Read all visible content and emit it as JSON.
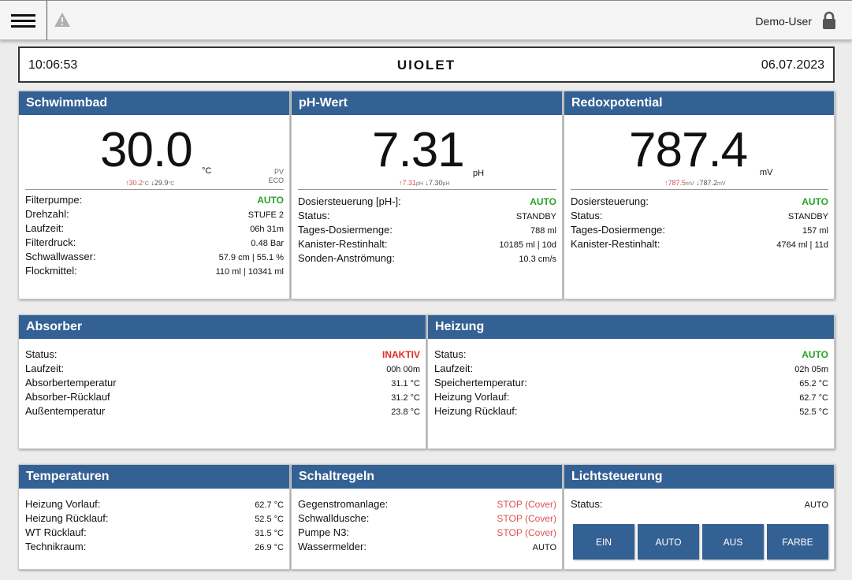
{
  "topbar": {
    "menu_icon": "hamburger-icon",
    "warning_icon": "warning-icon",
    "user": "Demo-User",
    "lock_icon": "lock-icon"
  },
  "header": {
    "time": "10:06:53",
    "logo": "UIOLET",
    "date": "06.07.2023"
  },
  "colors": {
    "accent": "#346194",
    "auto": "#29a329",
    "inactive": "#e22a2a",
    "stop": "#e05252"
  },
  "schwimmbad": {
    "title": "Schwimmbad",
    "value": "30.0",
    "unit": "°C",
    "max": "↑30.2",
    "max_unit": "°C",
    "min": "↓29.9",
    "min_unit": "°C",
    "pv": "PV",
    "eco": "ECO",
    "rows": [
      {
        "label": "Filterpumpe:",
        "value": "AUTO"
      },
      {
        "label": "Drehzahl:",
        "value": "STUFE 2"
      },
      {
        "label": "Laufzeit:",
        "value": "06h 31m"
      },
      {
        "label": "Filterdruck:",
        "value": "0.48 Bar"
      },
      {
        "label": "Schwallwasser:",
        "value": "57.9 cm | 55.1 %"
      },
      {
        "label": "Flockmittel:",
        "value": "110 ml | 10341 ml"
      }
    ]
  },
  "ph": {
    "title": "pH-Wert",
    "value": "7.31",
    "unit": "pH",
    "max": "↑7.31",
    "max_unit": "pH",
    "min": "↓7.30",
    "min_unit": "pH",
    "rows": [
      {
        "label": "Dosiersteuerung [pH-]:",
        "value": "AUTO"
      },
      {
        "label": "Status:",
        "value": "STANDBY"
      },
      {
        "label": "Tages-Dosiermenge:",
        "value": "788 ml"
      },
      {
        "label": "Kanister-Restinhalt:",
        "value": "10185 ml | 10d"
      },
      {
        "label": "Sonden-Anströmung:",
        "value": "10.3 cm/s"
      }
    ]
  },
  "redox": {
    "title": "Redoxpotential",
    "value": "787.4",
    "unit": "mV",
    "max": "↑787.5",
    "max_unit": "mV",
    "min": "↓787.2",
    "min_unit": "mV",
    "rows": [
      {
        "label": "Dosiersteuerung:",
        "value": "AUTO"
      },
      {
        "label": "Status:",
        "value": "STANDBY"
      },
      {
        "label": "Tages-Dosiermenge:",
        "value": "157 ml"
      },
      {
        "label": "Kanister-Restinhalt:",
        "value": "4764 ml | 11d"
      }
    ]
  },
  "absorber": {
    "title": "Absorber",
    "rows": [
      {
        "label": "Status:",
        "value": "INAKTIV"
      },
      {
        "label": "Laufzeit:",
        "value": "00h 00m"
      },
      {
        "label": "Absorbertemperatur",
        "value": "31.1 °C"
      },
      {
        "label": "Absorber-Rücklauf",
        "value": "31.2 °C"
      },
      {
        "label": "Außentemperatur",
        "value": "23.8 °C"
      }
    ]
  },
  "heizung": {
    "title": "Heizung",
    "rows": [
      {
        "label": "Status:",
        "value": "AUTO"
      },
      {
        "label": "Laufzeit:",
        "value": "02h 05m"
      },
      {
        "label": "Speichertemperatur:",
        "value": "65.2 °C"
      },
      {
        "label": "Heizung Vorlauf:",
        "value": "62.7 °C"
      },
      {
        "label": "Heizung Rücklauf:",
        "value": "52.5 °C"
      }
    ]
  },
  "temperaturen": {
    "title": "Temperaturen",
    "rows": [
      {
        "label": "Heizung Vorlauf:",
        "value": "62.7 °C"
      },
      {
        "label": "Heizung Rücklauf:",
        "value": "52.5 °C"
      },
      {
        "label": "WT Rücklauf:",
        "value": "31.5 °C"
      },
      {
        "label": "Technikraum:",
        "value": "26.9 °C"
      }
    ]
  },
  "schaltregeln": {
    "title": "Schaltregeln",
    "rows": [
      {
        "label": "Gegenstromanlage:",
        "value": "STOP (Cover)"
      },
      {
        "label": "Schwalldusche:",
        "value": "STOP (Cover)"
      },
      {
        "label": "Pumpe N3:",
        "value": "STOP (Cover)"
      },
      {
        "label": "Wassermelder:",
        "value": "AUTO"
      }
    ]
  },
  "licht": {
    "title": "Lichtsteuerung",
    "status_label": "Status:",
    "status_value": "AUTO",
    "buttons": [
      "EIN",
      "AUTO",
      "AUS",
      "FARBE"
    ]
  }
}
